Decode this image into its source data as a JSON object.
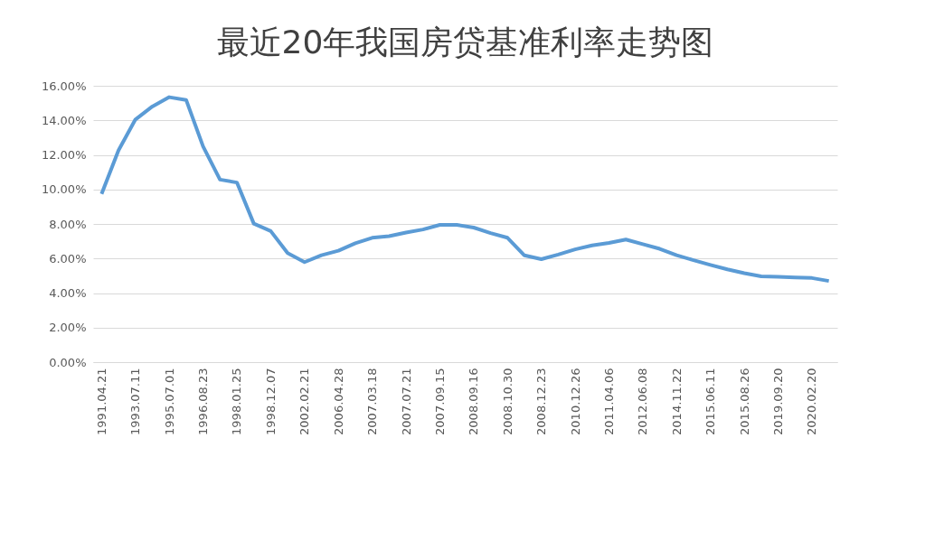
{
  "chart_data": {
    "type": "line",
    "title": "最近20年我国房贷基准利率走势图",
    "categories": [
      "1991.04.21",
      null,
      "1993.07.11",
      null,
      "1995.07.01",
      null,
      "1996.08.23",
      null,
      "1998.01.25",
      null,
      "1998.12.07",
      null,
      "2002.02.21",
      null,
      "2006.04.28",
      null,
      "2007.03.18",
      null,
      "2007.07.21",
      null,
      "2007.09.15",
      null,
      "2008.09.16",
      null,
      "2008.10.30",
      null,
      "2008.12.23",
      null,
      "2010.12.26",
      null,
      "2011.04.06",
      null,
      "2012.06.08",
      null,
      "2014.11.22",
      null,
      "2015.06.11",
      null,
      "2015.08.26",
      null,
      "2019.09.20",
      null,
      "2020.02.20",
      null
    ],
    "series": [
      {
        "color": "#5b9bd5",
        "values": [
          9.74,
          12.26,
          14.05,
          14.8,
          15.34,
          15.18,
          12.49,
          10.57,
          10.4,
          8.02,
          7.59,
          6.31,
          5.79,
          6.19,
          6.45,
          6.88,
          7.2,
          7.29,
          7.5,
          7.68,
          7.95,
          7.95,
          7.79,
          7.47,
          7.2,
          6.18,
          5.96,
          6.23,
          6.53,
          6.76,
          6.9,
          7.1,
          6.83,
          6.56,
          6.19,
          5.9,
          5.63,
          5.37,
          5.15,
          4.97,
          4.94,
          4.9,
          4.87,
          4.7
        ]
      }
    ],
    "ylim": [
      0,
      16
    ],
    "yticks": [
      {
        "value": 0,
        "label": "0.00%"
      },
      {
        "value": 2,
        "label": "2.00%"
      },
      {
        "value": 4,
        "label": "4.00%"
      },
      {
        "value": 6,
        "label": "6.00%"
      },
      {
        "value": 8,
        "label": "8.00%"
      },
      {
        "value": 10,
        "label": "10.00%"
      },
      {
        "value": 12,
        "label": "12.00%"
      },
      {
        "value": 14,
        "label": "14.00%"
      },
      {
        "value": 16,
        "label": "16.00%"
      }
    ],
    "grid": "y",
    "legend": false,
    "marker": "none",
    "line_style": "solid"
  }
}
